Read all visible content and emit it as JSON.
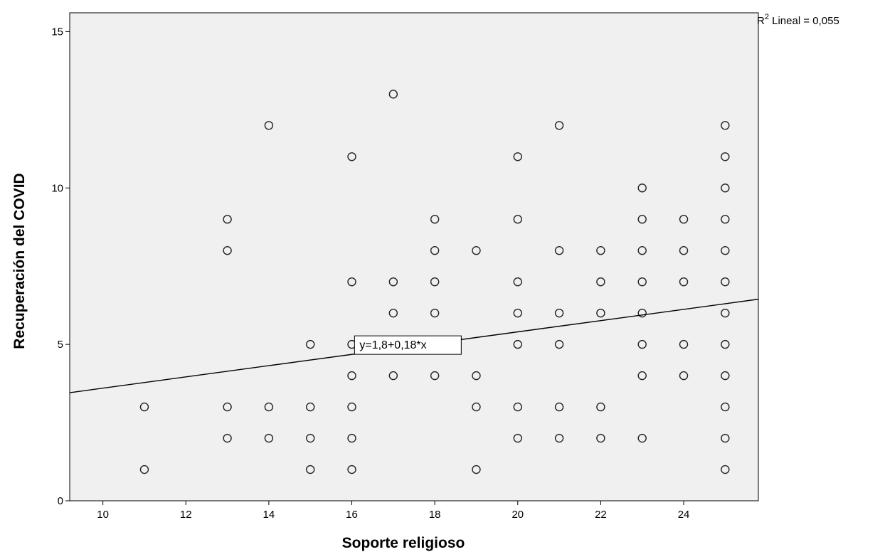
{
  "chart_data": {
    "type": "scatter",
    "xlabel": "Soporte religioso",
    "ylabel": "Recuperación del COVID",
    "xlim": [
      9.2,
      25.8
    ],
    "ylim": [
      0,
      15.6
    ],
    "xticks": [
      10,
      12,
      14,
      16,
      18,
      20,
      22,
      24
    ],
    "yticks": [
      0,
      5,
      10,
      15
    ],
    "grid": false,
    "marker": "open-circle",
    "background": "#f0f0f0",
    "r2_label": {
      "prefix": "R",
      "sup": "2",
      "text": " Lineal = 0,055"
    },
    "fit_line": {
      "label": "y=1,8+0,18*x",
      "intercept": 1.8,
      "slope": 0.18,
      "label_x": 16.1,
      "label_y": 5
    },
    "points": [
      {
        "x": 11,
        "ys": [
          1,
          3
        ]
      },
      {
        "x": 13,
        "ys": [
          2,
          3,
          8,
          9
        ]
      },
      {
        "x": 14,
        "ys": [
          2,
          3,
          12
        ]
      },
      {
        "x": 15,
        "ys": [
          1,
          2,
          3,
          5
        ]
      },
      {
        "x": 16,
        "ys": [
          1,
          2,
          3,
          4,
          5,
          7,
          11
        ]
      },
      {
        "x": 17,
        "ys": [
          4,
          6,
          7,
          13
        ]
      },
      {
        "x": 18,
        "ys": [
          4,
          6,
          7,
          8,
          9
        ]
      },
      {
        "x": 19,
        "ys": [
          1,
          3,
          4,
          8
        ]
      },
      {
        "x": 20,
        "ys": [
          2,
          3,
          5,
          6,
          7,
          9,
          11
        ]
      },
      {
        "x": 21,
        "ys": [
          2,
          3,
          5,
          6,
          8,
          12
        ]
      },
      {
        "x": 22,
        "ys": [
          2,
          3,
          6,
          7,
          8
        ]
      },
      {
        "x": 23,
        "ys": [
          2,
          4,
          5,
          6,
          7,
          8,
          9,
          10
        ]
      },
      {
        "x": 24,
        "ys": [
          4,
          5,
          7,
          8,
          9
        ]
      },
      {
        "x": 25,
        "ys": [
          1,
          2,
          3,
          4,
          5,
          6,
          7,
          8,
          9,
          10,
          11,
          12
        ]
      }
    ]
  }
}
